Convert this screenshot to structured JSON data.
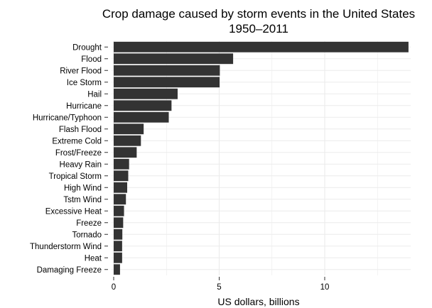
{
  "chart_data": {
    "type": "bar",
    "orientation": "horizontal",
    "title_lines": [
      "Crop damage caused by storm events in the United States",
      "1950–2011"
    ],
    "xlabel": "US dollars, billions",
    "ylabel": "",
    "xlim": [
      0,
      14
    ],
    "xticks": [
      0,
      5,
      10
    ],
    "grid": true,
    "bar_color": "#333333",
    "grid_color": "#ebebeb",
    "categories": [
      "Drought",
      "Flood",
      "River Flood",
      "Ice Storm",
      "Hail",
      "Hurricane",
      "Hurricane/Typhoon",
      "Flash Flood",
      "Extreme Cold",
      "Frost/Freeze",
      "Heavy Rain",
      "Tropical Storm",
      "High Wind",
      "Tstm Wind",
      "Excessive Heat",
      "Freeze",
      "Tornado",
      "Thunderstorm Wind",
      "Heat",
      "Damaging Freeze"
    ],
    "values": [
      13.97,
      5.66,
      5.03,
      5.02,
      3.03,
      2.74,
      2.61,
      1.42,
      1.29,
      1.09,
      0.73,
      0.69,
      0.64,
      0.58,
      0.49,
      0.45,
      0.41,
      0.4,
      0.4,
      0.3
    ]
  }
}
